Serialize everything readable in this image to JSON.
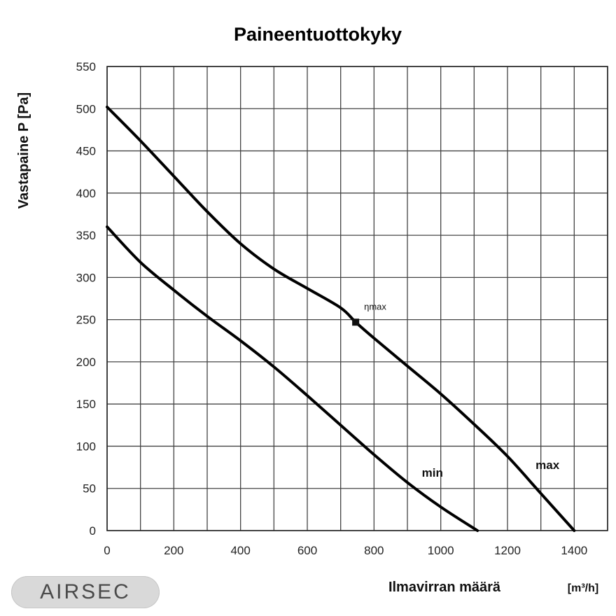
{
  "chart_data": {
    "type": "line",
    "title": "Paineentuottokyky",
    "xlabel": "Ilmavirran määrä",
    "xunit": "[m³/h]",
    "ylabel": "Vastapaine P [Pa]",
    "xlim": [
      0,
      1500
    ],
    "ylim": [
      0,
      550
    ],
    "xticks": [
      0,
      200,
      400,
      600,
      800,
      1000,
      1200,
      1400
    ],
    "yticks": [
      0,
      50,
      100,
      150,
      200,
      250,
      300,
      350,
      400,
      450,
      500,
      550
    ],
    "grid": true,
    "series": [
      {
        "name": "max",
        "x": [
          0,
          100,
          200,
          300,
          400,
          500,
          600,
          700,
          745,
          800,
          900,
          1000,
          1100,
          1200,
          1300,
          1400
        ],
        "y": [
          502,
          462,
          420,
          378,
          340,
          310,
          287,
          264,
          247,
          228,
          195,
          162,
          126,
          88,
          44,
          0
        ]
      },
      {
        "name": "min",
        "x": [
          0,
          100,
          200,
          300,
          400,
          500,
          600,
          700,
          800,
          900,
          1000,
          1110
        ],
        "y": [
          360,
          318,
          285,
          254,
          225,
          194,
          160,
          125,
          90,
          57,
          28,
          0
        ]
      }
    ],
    "annotations": [
      {
        "text": "ηmax",
        "x": 745,
        "y": 247
      }
    ]
  },
  "logo": {
    "text": "AIRSEC"
  }
}
